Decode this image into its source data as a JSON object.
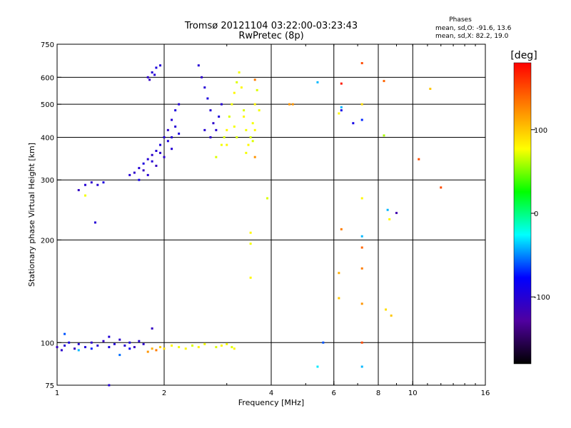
{
  "header": {
    "title_line1": "Tromsø 20121104 03:22:00-03:23:43",
    "title_line2": "RwPretec (8p)"
  },
  "phases_box": {
    "heading": "Phases",
    "line_o": "mean, sd,O: -91.6, 13.6",
    "line_x": "mean, sd,X:  82.2, 19.0"
  },
  "colorbar": {
    "label": "[deg]",
    "ticks": [
      "100",
      "0",
      "-100"
    ],
    "tick_values": [
      100,
      0,
      -100
    ],
    "range": [
      -180,
      180
    ],
    "colors": [
      "#ff0000",
      "#ff8000",
      "#ffff00",
      "#00ff00",
      "#00ffff",
      "#0000ff",
      "#5000a0",
      "#000000"
    ]
  },
  "chart_data": {
    "type": "scatter",
    "xlabel": "Frequency [MHz]",
    "ylabel": "Stationary phase Virtual Height [km]",
    "x_scale": "log",
    "y_scale": "log",
    "xlim": [
      1,
      16
    ],
    "ylim": [
      75,
      750
    ],
    "x_ticks": [
      {
        "value": 1,
        "label": "1"
      },
      {
        "value": 2,
        "label": "2"
      },
      {
        "value": 4,
        "label": "4"
      },
      {
        "value": 6,
        "label": "6"
      },
      {
        "value": 8,
        "label": "8"
      },
      {
        "value": 10,
        "label": "10"
      },
      {
        "value": 16,
        "label": "16"
      }
    ],
    "x_grid": [
      2,
      4,
      6,
      8,
      10
    ],
    "y_ticks": [
      {
        "value": 75,
        "label": "75"
      },
      {
        "value": 100,
        "label": "100"
      },
      {
        "value": 200,
        "label": "200"
      },
      {
        "value": 300,
        "label": "300"
      },
      {
        "value": 400,
        "label": "400"
      },
      {
        "value": 500,
        "label": "500"
      },
      {
        "value": 600,
        "label": "600"
      },
      {
        "value": 750,
        "label": "750"
      }
    ],
    "y_grid": [
      100,
      200,
      300,
      400,
      500,
      600
    ],
    "color_value": "phase [deg]",
    "series": [
      {
        "name": "O",
        "points": [
          [
            1.0,
            97,
            -110
          ],
          [
            1.03,
            95,
            -105
          ],
          [
            1.05,
            98,
            -100
          ],
          [
            1.08,
            100,
            -95
          ],
          [
            1.12,
            96,
            -110
          ],
          [
            1.15,
            99,
            -100
          ],
          [
            1.2,
            97,
            -95
          ],
          [
            1.25,
            100,
            -105
          ],
          [
            1.3,
            98,
            -100
          ],
          [
            1.35,
            101,
            -110
          ],
          [
            1.4,
            97,
            -95
          ],
          [
            1.45,
            99,
            -100
          ],
          [
            1.5,
            102,
            -105
          ],
          [
            1.55,
            98,
            -100
          ],
          [
            1.6,
            100,
            -95
          ],
          [
            1.65,
            97,
            -110
          ],
          [
            1.7,
            101,
            -100
          ],
          [
            1.75,
            99,
            -105
          ],
          [
            1.05,
            106,
            -60
          ],
          [
            1.15,
            95,
            -40
          ],
          [
            1.5,
            92,
            -55
          ],
          [
            1.25,
            96,
            -70
          ],
          [
            1.4,
            104,
            -100
          ],
          [
            1.6,
            96,
            -85
          ],
          [
            1.6,
            310,
            -100
          ],
          [
            1.65,
            315,
            -105
          ],
          [
            1.7,
            325,
            -100
          ],
          [
            1.75,
            335,
            -95
          ],
          [
            1.8,
            345,
            -100
          ],
          [
            1.85,
            355,
            -105
          ],
          [
            1.9,
            365,
            -100
          ],
          [
            1.95,
            380,
            -95
          ],
          [
            2.0,
            400,
            -100
          ],
          [
            2.05,
            420,
            -105
          ],
          [
            2.1,
            450,
            -100
          ],
          [
            2.15,
            480,
            -95
          ],
          [
            2.2,
            500,
            -100
          ],
          [
            1.75,
            320,
            -110
          ],
          [
            1.85,
            340,
            -100
          ],
          [
            1.95,
            360,
            -105
          ],
          [
            2.05,
            390,
            -95
          ],
          [
            2.15,
            430,
            -100
          ],
          [
            1.7,
            300,
            -90
          ],
          [
            1.9,
            330,
            -110
          ],
          [
            2.1,
            370,
            -100
          ],
          [
            2.2,
            410,
            -95
          ],
          [
            1.8,
            310,
            -100
          ],
          [
            2.0,
            350,
            -105
          ],
          [
            2.1,
            400,
            -100
          ],
          [
            1.8,
            600,
            -105
          ],
          [
            1.85,
            620,
            -100
          ],
          [
            1.9,
            640,
            -95
          ],
          [
            1.95,
            650,
            -100
          ],
          [
            1.82,
            590,
            -110
          ],
          [
            1.88,
            610,
            -100
          ],
          [
            2.5,
            650,
            -100
          ],
          [
            2.55,
            600,
            -105
          ],
          [
            2.6,
            560,
            -100
          ],
          [
            2.65,
            520,
            -95
          ],
          [
            2.7,
            480,
            -100
          ],
          [
            2.75,
            440,
            -105
          ],
          [
            2.8,
            420,
            -100
          ],
          [
            2.85,
            460,
            -95
          ],
          [
            2.9,
            500,
            -100
          ],
          [
            2.7,
            400,
            -105
          ],
          [
            2.6,
            420,
            -100
          ],
          [
            1.2,
            290,
            -100
          ],
          [
            1.25,
            295,
            -105
          ],
          [
            1.3,
            290,
            -100
          ],
          [
            1.35,
            295,
            -95
          ],
          [
            1.15,
            280,
            -110
          ],
          [
            1.28,
            225,
            -100
          ],
          [
            1.4,
            75,
            -100
          ],
          [
            1.85,
            110,
            -110
          ]
        ]
      },
      {
        "name": "X",
        "points": [
          [
            1.8,
            94,
            120
          ],
          [
            1.85,
            96,
            110
          ],
          [
            1.9,
            95,
            130
          ],
          [
            1.95,
            97,
            100
          ],
          [
            2.0,
            96,
            90
          ],
          [
            2.1,
            98,
            80
          ],
          [
            2.2,
            97,
            75
          ],
          [
            2.3,
            96,
            80
          ],
          [
            2.4,
            98,
            70
          ],
          [
            2.5,
            97,
            80
          ],
          [
            2.6,
            99,
            75
          ],
          [
            2.8,
            97,
            70
          ],
          [
            2.9,
            98,
            80
          ],
          [
            3.0,
            99,
            75
          ],
          [
            3.1,
            97,
            70
          ],
          [
            3.15,
            96,
            80
          ],
          [
            2.8,
            350,
            70
          ],
          [
            2.9,
            380,
            75
          ],
          [
            3.0,
            420,
            80
          ],
          [
            3.05,
            460,
            70
          ],
          [
            3.1,
            500,
            75
          ],
          [
            3.15,
            540,
            80
          ],
          [
            3.2,
            580,
            70
          ],
          [
            3.25,
            620,
            75
          ],
          [
            3.3,
            560,
            80
          ],
          [
            3.35,
            480,
            70
          ],
          [
            3.4,
            420,
            75
          ],
          [
            3.45,
            380,
            80
          ],
          [
            3.5,
            400,
            70
          ],
          [
            3.55,
            440,
            75
          ],
          [
            3.6,
            500,
            80
          ],
          [
            3.65,
            550,
            70
          ],
          [
            3.7,
            480,
            75
          ],
          [
            3.0,
            380,
            80
          ],
          [
            3.2,
            400,
            70
          ],
          [
            3.4,
            360,
            75
          ],
          [
            3.6,
            420,
            80
          ],
          [
            2.95,
            400,
            70
          ],
          [
            3.15,
            430,
            75
          ],
          [
            3.35,
            460,
            80
          ],
          [
            3.55,
            390,
            70
          ],
          [
            1.2,
            270,
            75
          ],
          [
            3.5,
            210,
            80
          ],
          [
            3.5,
            195,
            75
          ],
          [
            3.5,
            155,
            80
          ],
          [
            3.9,
            265,
            70
          ],
          [
            3.6,
            350,
            120
          ],
          [
            3.6,
            590,
            130
          ],
          [
            4.6,
            500,
            120
          ]
        ]
      },
      {
        "name": "other",
        "points": [
          [
            5.4,
            580,
            -40
          ],
          [
            5.4,
            85,
            -30
          ],
          [
            5.6,
            100,
            -60
          ],
          [
            6.3,
            480,
            -90
          ],
          [
            6.3,
            490,
            -40
          ],
          [
            6.2,
            470,
            80
          ],
          [
            6.3,
            215,
            130
          ],
          [
            6.2,
            160,
            110
          ],
          [
            6.2,
            135,
            100
          ],
          [
            6.8,
            440,
            -90
          ],
          [
            7.2,
            660,
            150
          ],
          [
            7.2,
            450,
            -70
          ],
          [
            7.2,
            500,
            90
          ],
          [
            7.2,
            265,
            80
          ],
          [
            7.2,
            205,
            -40
          ],
          [
            7.2,
            190,
            140
          ],
          [
            7.2,
            165,
            130
          ],
          [
            7.2,
            130,
            120
          ],
          [
            7.2,
            100,
            150
          ],
          [
            7.2,
            85,
            -40
          ],
          [
            6.3,
            575,
            170
          ],
          [
            8.3,
            585,
            140
          ],
          [
            8.3,
            405,
            60
          ],
          [
            8.5,
            245,
            -40
          ],
          [
            8.6,
            230,
            80
          ],
          [
            8.4,
            125,
            90
          ],
          [
            8.7,
            120,
            100
          ],
          [
            9.0,
            240,
            -120
          ],
          [
            10.4,
            345,
            150
          ],
          [
            11.2,
            555,
            100
          ],
          [
            12.0,
            285,
            150
          ],
          [
            4.5,
            500,
            120
          ]
        ]
      }
    ]
  }
}
